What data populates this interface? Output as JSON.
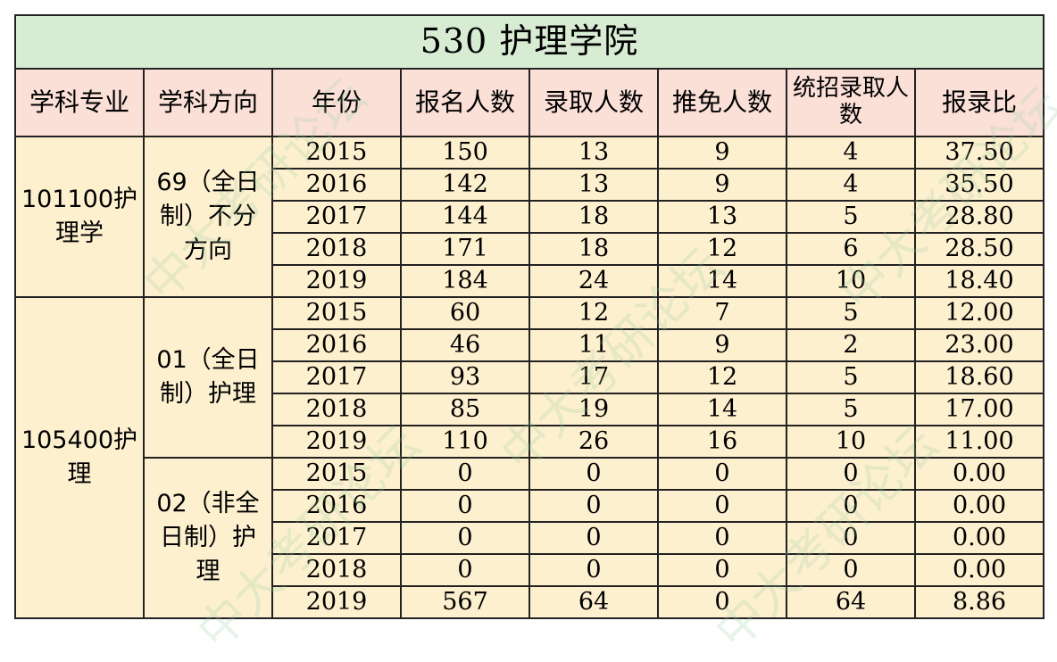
{
  "title": "530  护理学院",
  "headers": [
    "学科专业",
    "学科方向",
    "年份",
    "报名人数",
    "录取人数",
    "推免人数",
    "统招录取人数",
    "报录比"
  ],
  "watermark": "中大考研论坛",
  "groups": [
    {
      "major": "101100护理学",
      "directions": [
        {
          "name": "69（全日制）不分方向",
          "rows": [
            {
              "year": "2015",
              "applicants": "150",
              "admitted": "13",
              "exempt": "9",
              "unified": "4",
              "ratio": "37.50"
            },
            {
              "year": "2016",
              "applicants": "142",
              "admitted": "13",
              "exempt": "9",
              "unified": "4",
              "ratio": "35.50"
            },
            {
              "year": "2017",
              "applicants": "144",
              "admitted": "18",
              "exempt": "13",
              "unified": "5",
              "ratio": "28.80"
            },
            {
              "year": "2018",
              "applicants": "171",
              "admitted": "18",
              "exempt": "12",
              "unified": "6",
              "ratio": "28.50"
            },
            {
              "year": "2019",
              "applicants": "184",
              "admitted": "24",
              "exempt": "14",
              "unified": "10",
              "ratio": "18.40"
            }
          ]
        }
      ]
    },
    {
      "major": "105400护理",
      "directions": [
        {
          "name": "01（全日制）护理",
          "rows": [
            {
              "year": "2015",
              "applicants": "60",
              "admitted": "12",
              "exempt": "7",
              "unified": "5",
              "ratio": "12.00"
            },
            {
              "year": "2016",
              "applicants": "46",
              "admitted": "11",
              "exempt": "9",
              "unified": "2",
              "ratio": "23.00"
            },
            {
              "year": "2017",
              "applicants": "93",
              "admitted": "17",
              "exempt": "12",
              "unified": "5",
              "ratio": "18.60"
            },
            {
              "year": "2018",
              "applicants": "85",
              "admitted": "19",
              "exempt": "14",
              "unified": "5",
              "ratio": "17.00"
            },
            {
              "year": "2019",
              "applicants": "110",
              "admitted": "26",
              "exempt": "16",
              "unified": "10",
              "ratio": "11.00"
            }
          ]
        },
        {
          "name": "02（非全日制）护理",
          "rows": [
            {
              "year": "2015",
              "applicants": "0",
              "admitted": "0",
              "exempt": "0",
              "unified": "0",
              "ratio": "0.00"
            },
            {
              "year": "2016",
              "applicants": "0",
              "admitted": "0",
              "exempt": "0",
              "unified": "0",
              "ratio": "0.00"
            },
            {
              "year": "2017",
              "applicants": "0",
              "admitted": "0",
              "exempt": "0",
              "unified": "0",
              "ratio": "0.00"
            },
            {
              "year": "2018",
              "applicants": "0",
              "admitted": "0",
              "exempt": "0",
              "unified": "0",
              "ratio": "0.00"
            },
            {
              "year": "2019",
              "applicants": "567",
              "admitted": "64",
              "exempt": "0",
              "unified": "64",
              "ratio": "8.86"
            }
          ]
        }
      ]
    }
  ]
}
